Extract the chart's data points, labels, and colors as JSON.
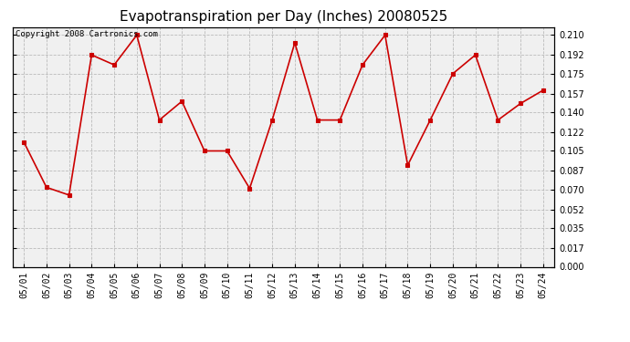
{
  "title": "Evapotranspiration per Day (Inches) 20080525",
  "copyright_text": "Copyright 2008 Cartronics.com",
  "dates": [
    "05/01",
    "05/02",
    "05/03",
    "05/04",
    "05/05",
    "05/06",
    "05/07",
    "05/08",
    "05/09",
    "05/10",
    "05/11",
    "05/12",
    "05/13",
    "05/14",
    "05/15",
    "05/16",
    "05/17",
    "05/18",
    "05/19",
    "05/20",
    "05/21",
    "05/22",
    "05/23",
    "05/24"
  ],
  "values": [
    0.113,
    0.072,
    0.065,
    0.192,
    0.183,
    0.21,
    0.133,
    0.15,
    0.105,
    0.105,
    0.071,
    0.133,
    0.203,
    0.133,
    0.133,
    0.183,
    0.21,
    0.092,
    0.133,
    0.175,
    0.192,
    0.133,
    0.148,
    0.16
  ],
  "line_color": "#cc0000",
  "marker": "s",
  "marker_size": 3,
  "background_color": "#ffffff",
  "plot_background": "#f0f0f0",
  "grid_color": "#bbbbbb",
  "yticks": [
    0.0,
    0.017,
    0.035,
    0.052,
    0.07,
    0.087,
    0.105,
    0.122,
    0.14,
    0.157,
    0.175,
    0.192,
    0.21
  ],
  "ylim": [
    0.0,
    0.217
  ],
  "title_fontsize": 11,
  "tick_fontsize": 7,
  "copyright_fontsize": 6.5,
  "figwidth": 6.9,
  "figheight": 3.75,
  "dpi": 100
}
